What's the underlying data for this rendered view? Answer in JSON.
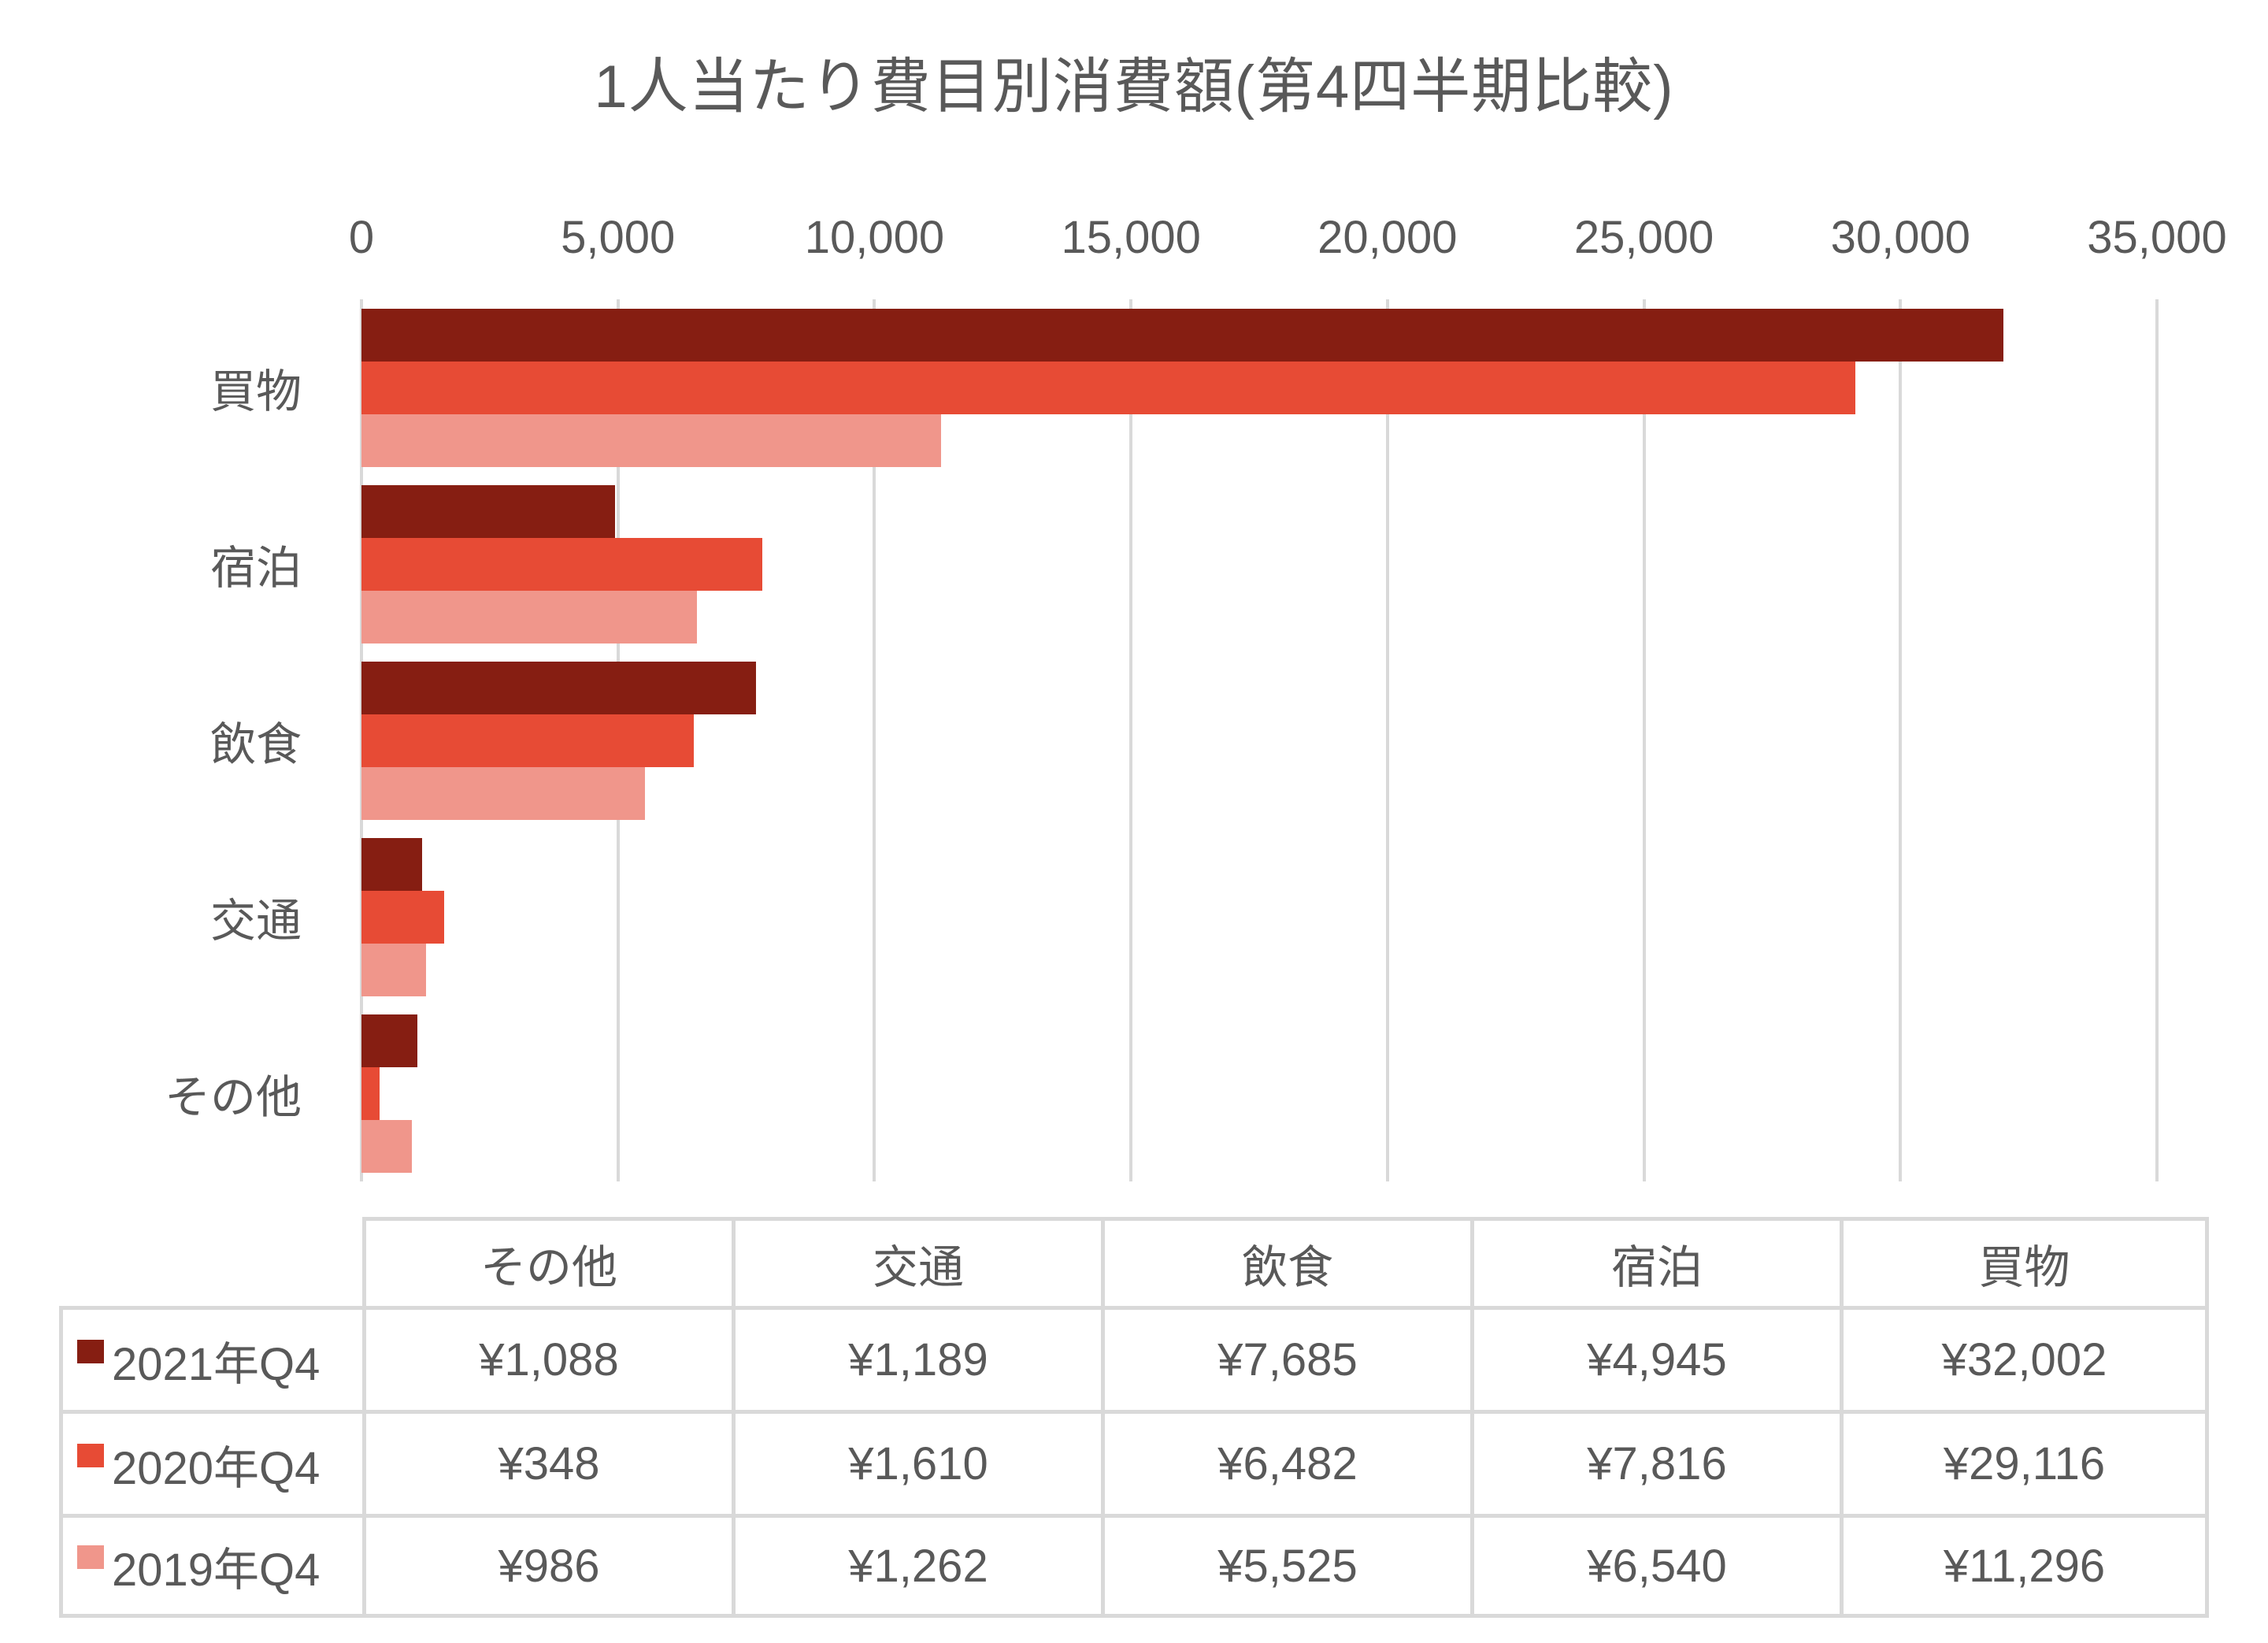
{
  "title": "1人当たり費目別消費額(第4四半期比較)",
  "colors": {
    "series_2021": "#861E12",
    "series_2020": "#E74B35",
    "series_2019": "#F0968B",
    "gridline": "#D9D9D9",
    "text": "#595959",
    "table_border": "#D9D9D9"
  },
  "chart_data": {
    "type": "bar",
    "orientation": "horizontal",
    "title": "1人当たり費目別消費額(第4四半期比較)",
    "categories": [
      "買物",
      "宿泊",
      "飲食",
      "交通",
      "その他"
    ],
    "series": [
      {
        "name": "2021年Q4",
        "color": "#861E12",
        "values": [
          32002,
          4945,
          7685,
          1189,
          1088
        ]
      },
      {
        "name": "2020年Q4",
        "color": "#E74B35",
        "values": [
          29116,
          7816,
          6482,
          1610,
          348
        ]
      },
      {
        "name": "2019年Q4",
        "color": "#F0968B",
        "values": [
          11296,
          6540,
          5525,
          1262,
          986
        ]
      }
    ],
    "xlabel": "",
    "ylabel": "",
    "xlim": [
      0,
      35000
    ],
    "x_ticks": [
      "0",
      "5,000",
      "10,000",
      "15,000",
      "20,000",
      "25,000",
      "30,000",
      "35,000"
    ],
    "grid": "vertical-only",
    "axis_labels_position": "top",
    "legend_position": "table-row-headers"
  },
  "table": {
    "columns": [
      "その他",
      "交通",
      "飲食",
      "宿泊",
      "買物"
    ],
    "rows": [
      {
        "label": "2021年Q4",
        "swatch_color": "#861E12",
        "values": [
          "¥1,088",
          "¥1,189",
          "¥7,685",
          "¥4,945",
          "¥32,002"
        ]
      },
      {
        "label": "2020年Q4",
        "swatch_color": "#E74B35",
        "values": [
          "¥348",
          "¥1,610",
          "¥6,482",
          "¥7,816",
          "¥29,116"
        ]
      },
      {
        "label": "2019年Q4",
        "swatch_color": "#F0968B",
        "values": [
          "¥986",
          "¥1,262",
          "¥5,525",
          "¥6,540",
          "¥11,296"
        ]
      }
    ]
  }
}
